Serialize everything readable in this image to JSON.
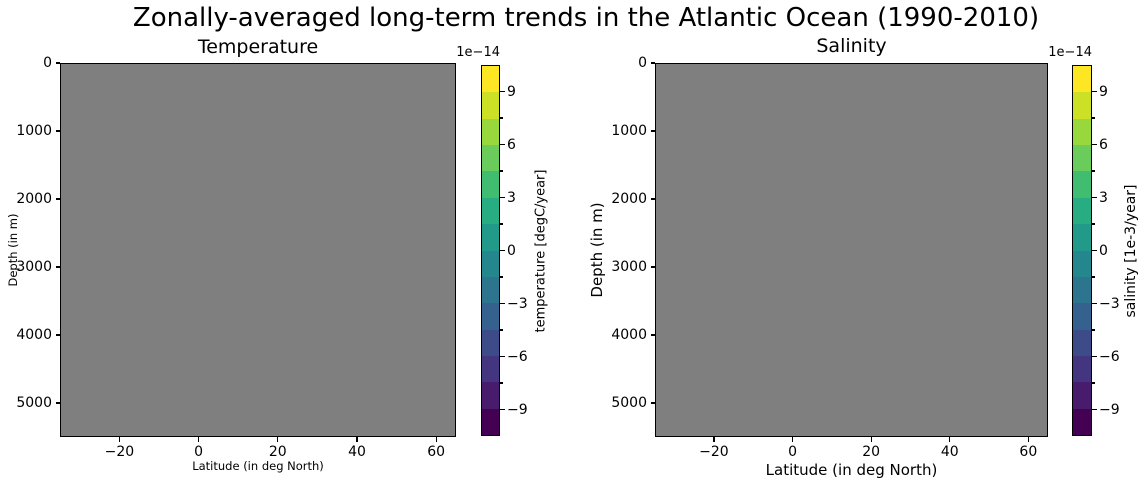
{
  "figure": {
    "suptitle": "Zonally-averaged long-term trends in the Atlantic Ocean (1990-2010)",
    "background": "#ffffff",
    "plot_fill": "#7f7f7f",
    "spine_color": "#000000",
    "text_color": "#000000"
  },
  "colormap_14_colors_bottom_to_top": [
    "#440154",
    "#481b6d",
    "#443580",
    "#3d4c89",
    "#34618d",
    "#2d748e",
    "#24878d",
    "#219a89",
    "#28ac81",
    "#41bd72",
    "#69cc5b",
    "#99d83d",
    "#cce126",
    "#fde725"
  ],
  "chart_data": [
    {
      "type": "heatmap",
      "panel": "left",
      "title": "Temperature",
      "xlabel": "Latitude (in deg North)",
      "ylabel": "Depth (in m)",
      "x_ticks": [
        -20,
        0,
        20,
        40,
        60
      ],
      "xlim": [
        -35,
        65
      ],
      "y_ticks": [
        0,
        1000,
        2000,
        3000,
        4000,
        5000
      ],
      "ylim": [
        0,
        5500
      ],
      "y_axis_inverted": true,
      "grid": false,
      "field": "uniform",
      "data_note": "entire field renders as one uniform gray region (values ~0 at the 1e-14 scale, no visible structure)",
      "colorbar": {
        "offset_label": "1e−14",
        "label": "temperature [degC/year]",
        "major_ticks": [
          9,
          6,
          3,
          0,
          -3,
          -6,
          -9
        ],
        "minor_ticks": [
          7.5,
          4.5,
          1.5,
          -1.5,
          -4.5,
          -7.5
        ],
        "vmin": -10.5,
        "vmax": 10.5,
        "colormap": "viridis",
        "n_bands": 14,
        "position": "right of panel"
      }
    },
    {
      "type": "heatmap",
      "panel": "right",
      "title": "Salinity",
      "xlabel": "Latitude (in deg North)",
      "ylabel": "Depth (in m)",
      "x_ticks": [
        -20,
        0,
        20,
        40,
        60
      ],
      "xlim": [
        -35,
        65
      ],
      "y_ticks": [
        0,
        1000,
        2000,
        3000,
        4000,
        5000
      ],
      "ylim": [
        0,
        5500
      ],
      "y_axis_inverted": true,
      "grid": false,
      "field": "uniform",
      "data_note": "entire field renders as one uniform gray region (values ~0 at the 1e-14 scale, no visible structure)",
      "colorbar": {
        "offset_label": "1e−14",
        "label": "salinity [1e-3/year]",
        "major_ticks": [
          9,
          6,
          3,
          0,
          -3,
          -6,
          -9
        ],
        "minor_ticks": [
          7.5,
          4.5,
          1.5,
          -1.5,
          -4.5,
          -7.5
        ],
        "vmin": -10.5,
        "vmax": 10.5,
        "colormap": "viridis",
        "n_bands": 14,
        "position": "right of panel"
      }
    }
  ]
}
